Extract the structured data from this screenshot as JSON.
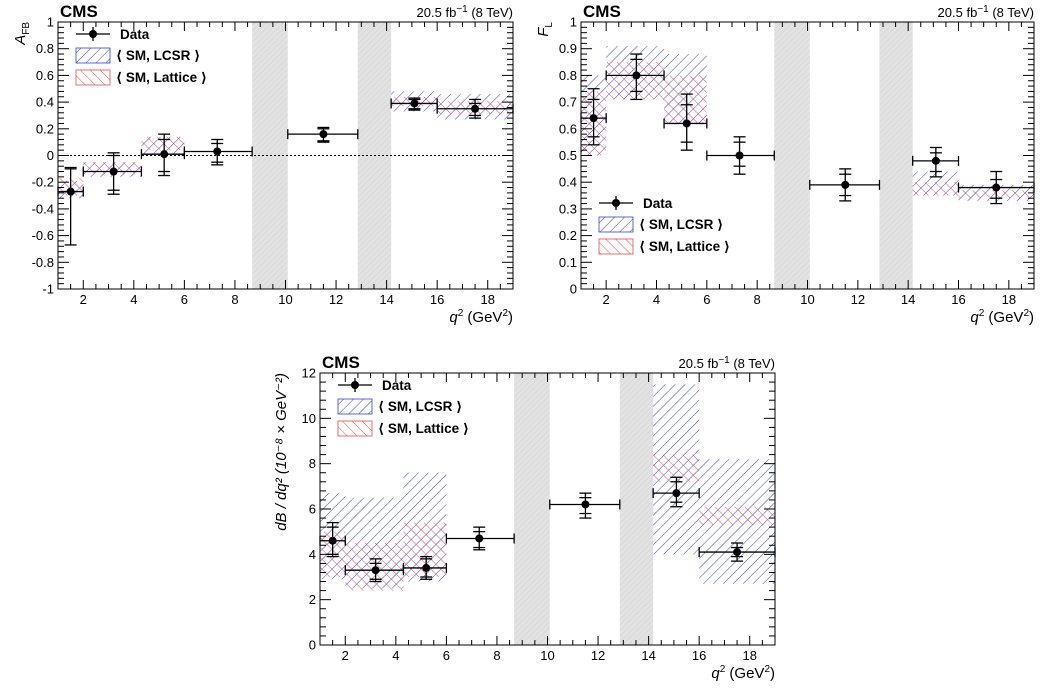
{
  "colors": {
    "lcsr": "#3b3fd0",
    "lattice": "#e0504a",
    "vetoed": "#c8c8c8",
    "data": "#000000"
  },
  "chart_data": [
    {
      "type": "scatter",
      "experiment": "CMS",
      "lumi_label": "20.5 fb",
      "lumi_unit_exp": "−1",
      "energy_label": "(8 TeV)",
      "xlabel": {
        "sym": "q",
        "sup": "2",
        "unit": " (GeV",
        "unit_sup": "2",
        "close": ")"
      },
      "ylabel": {
        "sym": "A",
        "sub": "FB"
      },
      "xlim": [
        1,
        19
      ],
      "ylim": [
        -1,
        1
      ],
      "x_ticks": [
        2,
        4,
        6,
        8,
        10,
        12,
        14,
        16,
        18
      ],
      "y_ticks": [
        -1,
        -0.8,
        -0.6,
        -0.4,
        -0.2,
        0,
        0.2,
        0.4,
        0.6,
        0.8,
        1
      ],
      "y_tick_labels": [
        "-1",
        "-0.8",
        "-0.6",
        "-0.4",
        "-0.2",
        "0",
        "0.2",
        "0.4",
        "0.6",
        "0.8",
        "1"
      ],
      "zero_line": true,
      "excluded_regions": [
        [
          8.68,
          10.09
        ],
        [
          12.86,
          14.18
        ]
      ],
      "legend": [
        "Data",
        "⟨ SM, LCSR ⟩",
        "⟨ SM, Lattice ⟩"
      ],
      "legend_position": "top-left",
      "data_points": [
        {
          "x": 1.5,
          "x_bin": [
            1,
            2
          ],
          "y": -0.27,
          "stat": [
            -0.27,
            -0.1
          ],
          "tot": [
            -0.67,
            -0.09
          ]
        },
        {
          "x": 3.2,
          "x_bin": [
            2,
            4.3
          ],
          "y": -0.12,
          "stat": [
            -0.26,
            0.0
          ],
          "tot": [
            -0.29,
            0.02
          ]
        },
        {
          "x": 5.2,
          "x_bin": [
            4.3,
            6
          ],
          "y": 0.01,
          "stat": [
            -0.12,
            0.12
          ],
          "tot": [
            -0.15,
            0.16
          ]
        },
        {
          "x": 7.3,
          "x_bin": [
            6,
            8.68
          ],
          "y": 0.03,
          "stat": [
            -0.05,
            0.09
          ],
          "tot": [
            -0.07,
            0.12
          ]
        },
        {
          "x": 11.5,
          "x_bin": [
            10.09,
            12.86
          ],
          "y": 0.16,
          "stat": [
            0.11,
            0.2
          ],
          "tot": [
            0.1,
            0.21
          ]
        },
        {
          "x": 15.1,
          "x_bin": [
            14.18,
            16
          ],
          "y": 0.39,
          "stat": [
            0.35,
            0.42
          ],
          "tot": [
            0.34,
            0.43
          ]
        },
        {
          "x": 17.5,
          "x_bin": [
            16,
            19
          ],
          "y": 0.35,
          "stat": [
            0.3,
            0.39
          ],
          "tot": [
            0.28,
            0.42
          ]
        }
      ],
      "sm_lcsr": [
        {
          "x": [
            1,
            2
          ],
          "y": [
            -0.19,
            -0.32
          ]
        },
        {
          "x": [
            2,
            4.3
          ],
          "y": [
            -0.05,
            -0.16
          ]
        },
        {
          "x": [
            4.3,
            6
          ],
          "y": [
            0.14,
            0.0
          ]
        },
        {
          "x": [
            14.18,
            16
          ],
          "y": [
            0.48,
            0.33
          ]
        },
        {
          "x": [
            16,
            19
          ],
          "y": [
            0.46,
            0.27
          ]
        }
      ],
      "sm_lattice": [
        {
          "x": [
            1,
            2
          ],
          "y": [
            -0.17,
            -0.3
          ]
        },
        {
          "x": [
            2,
            4.3
          ],
          "y": [
            -0.05,
            -0.14
          ]
        },
        {
          "x": [
            4.3,
            6
          ],
          "y": [
            0.14,
            0.04
          ]
        },
        {
          "x": [
            14.18,
            16
          ],
          "y": [
            0.44,
            0.37
          ]
        },
        {
          "x": [
            16,
            19
          ],
          "y": [
            0.41,
            0.31
          ]
        }
      ]
    },
    {
      "type": "scatter",
      "experiment": "CMS",
      "lumi_label": "20.5 fb",
      "lumi_unit_exp": "−1",
      "energy_label": "(8 TeV)",
      "xlabel": {
        "sym": "q",
        "sup": "2",
        "unit": " (GeV",
        "unit_sup": "2",
        "close": ")"
      },
      "ylabel": {
        "sym": "F",
        "sub": "L"
      },
      "xlim": [
        1,
        19
      ],
      "ylim": [
        0,
        1
      ],
      "x_ticks": [
        2,
        4,
        6,
        8,
        10,
        12,
        14,
        16,
        18
      ],
      "y_ticks": [
        0,
        0.1,
        0.2,
        0.3,
        0.4,
        0.5,
        0.6,
        0.7,
        0.8,
        0.9,
        1
      ],
      "y_tick_labels": [
        "0",
        "0.1",
        "0.2",
        "0.3",
        "0.4",
        "0.5",
        "0.6",
        "0.7",
        "0.8",
        "0.9",
        "1"
      ],
      "zero_line": false,
      "excluded_regions": [
        [
          8.68,
          10.09
        ],
        [
          12.86,
          14.18
        ]
      ],
      "legend": [
        "Data",
        "⟨ SM, LCSR ⟩",
        "⟨ SM, Lattice ⟩"
      ],
      "legend_position": "bottom-left",
      "data_points": [
        {
          "x": 1.5,
          "x_bin": [
            1,
            2
          ],
          "y": 0.64,
          "stat": [
            0.57,
            0.71
          ],
          "tot": [
            0.54,
            0.75
          ]
        },
        {
          "x": 3.2,
          "x_bin": [
            2,
            4.3
          ],
          "y": 0.8,
          "stat": [
            0.74,
            0.86
          ],
          "tot": [
            0.71,
            0.88
          ]
        },
        {
          "x": 5.2,
          "x_bin": [
            4.3,
            6
          ],
          "y": 0.62,
          "stat": [
            0.55,
            0.69
          ],
          "tot": [
            0.52,
            0.73
          ]
        },
        {
          "x": 7.3,
          "x_bin": [
            6,
            8.68
          ],
          "y": 0.5,
          "stat": [
            0.46,
            0.55
          ],
          "tot": [
            0.43,
            0.57
          ]
        },
        {
          "x": 11.5,
          "x_bin": [
            10.09,
            12.86
          ],
          "y": 0.39,
          "stat": [
            0.35,
            0.43
          ],
          "tot": [
            0.33,
            0.45
          ]
        },
        {
          "x": 15.1,
          "x_bin": [
            14.18,
            16
          ],
          "y": 0.48,
          "stat": [
            0.44,
            0.51
          ],
          "tot": [
            0.42,
            0.53
          ]
        },
        {
          "x": 17.5,
          "x_bin": [
            16,
            19
          ],
          "y": 0.38,
          "stat": [
            0.34,
            0.41
          ],
          "tot": [
            0.32,
            0.44
          ]
        }
      ],
      "sm_lcsr": [
        {
          "x": [
            1,
            2
          ],
          "y": [
            0.8,
            0.5
          ]
        },
        {
          "x": [
            2,
            4.3
          ],
          "y": [
            0.91,
            0.71
          ]
        },
        {
          "x": [
            4.3,
            6
          ],
          "y": [
            0.88,
            0.62
          ]
        },
        {
          "x": [
            14.18,
            16
          ],
          "y": [
            0.44,
            0.35
          ]
        },
        {
          "x": [
            16,
            19
          ],
          "y": [
            0.39,
            0.33
          ]
        }
      ],
      "sm_lattice": [
        {
          "x": [
            1,
            2
          ],
          "y": [
            0.74,
            0.5
          ]
        },
        {
          "x": [
            2,
            4.3
          ],
          "y": [
            0.85,
            0.71
          ]
        },
        {
          "x": [
            4.3,
            6
          ],
          "y": [
            0.8,
            0.62
          ]
        },
        {
          "x": [
            14.18,
            16
          ],
          "y": [
            0.4,
            0.35
          ]
        },
        {
          "x": [
            16,
            19
          ],
          "y": [
            0.37,
            0.34
          ]
        }
      ]
    },
    {
      "type": "scatter",
      "experiment": "CMS",
      "lumi_label": "20.5 fb",
      "lumi_unit_exp": "−1",
      "energy_label": "(8 TeV)",
      "xlabel": {
        "sym": "q",
        "sup": "2",
        "unit": " (GeV",
        "unit_sup": "2",
        "close": ")"
      },
      "ylabel": {
        "full": "dB / dq² (10⁻⁸ × GeV⁻²)"
      },
      "xlim": [
        1,
        19
      ],
      "ylim": [
        0,
        12
      ],
      "x_ticks": [
        2,
        4,
        6,
        8,
        10,
        12,
        14,
        16,
        18
      ],
      "y_ticks": [
        0,
        2,
        4,
        6,
        8,
        10,
        12
      ],
      "y_tick_labels": [
        "0",
        "2",
        "4",
        "6",
        "8",
        "10",
        "12"
      ],
      "zero_line": false,
      "excluded_regions": [
        [
          8.68,
          10.09
        ],
        [
          12.86,
          14.18
        ]
      ],
      "legend": [
        "Data",
        "⟨ SM, LCSR ⟩",
        "⟨ SM, Lattice ⟩"
      ],
      "legend_position": "top-left",
      "data_points": [
        {
          "x": 1.5,
          "x_bin": [
            1,
            2
          ],
          "y": 4.6,
          "stat": [
            4.0,
            5.2
          ],
          "tot": [
            3.9,
            5.4
          ]
        },
        {
          "x": 3.2,
          "x_bin": [
            2,
            4.3
          ],
          "y": 3.3,
          "stat": [
            2.9,
            3.6
          ],
          "tot": [
            2.8,
            3.8
          ]
        },
        {
          "x": 5.2,
          "x_bin": [
            4.3,
            6
          ],
          "y": 3.4,
          "stat": [
            3.0,
            3.8
          ],
          "tot": [
            2.9,
            3.9
          ]
        },
        {
          "x": 7.3,
          "x_bin": [
            6,
            8.68
          ],
          "y": 4.7,
          "stat": [
            4.3,
            5.0
          ],
          "tot": [
            4.2,
            5.2
          ]
        },
        {
          "x": 11.5,
          "x_bin": [
            10.09,
            12.86
          ],
          "y": 6.2,
          "stat": [
            5.8,
            6.5
          ],
          "tot": [
            5.6,
            6.7
          ]
        },
        {
          "x": 15.1,
          "x_bin": [
            14.18,
            16
          ],
          "y": 6.7,
          "stat": [
            6.3,
            7.2
          ],
          "tot": [
            6.1,
            7.4
          ]
        },
        {
          "x": 17.5,
          "x_bin": [
            16,
            19
          ],
          "y": 4.1,
          "stat": [
            3.9,
            4.3
          ],
          "tot": [
            3.7,
            4.5
          ]
        }
      ],
      "sm_lcsr": [
        {
          "x": [
            1,
            2
          ],
          "y": [
            6.7,
            2.9
          ]
        },
        {
          "x": [
            2,
            4.3
          ],
          "y": [
            6.5,
            2.5
          ]
        },
        {
          "x": [
            4.3,
            6
          ],
          "y": [
            7.6,
            2.8
          ]
        },
        {
          "x": [
            14.18,
            16
          ],
          "y": [
            11.5,
            4.0
          ]
        },
        {
          "x": [
            16,
            19
          ],
          "y": [
            8.2,
            2.7
          ]
        }
      ],
      "sm_lattice": [
        {
          "x": [
            1,
            2
          ],
          "y": [
            5.0,
            3.0
          ]
        },
        {
          "x": [
            2,
            4.3
          ],
          "y": [
            4.5,
            2.4
          ]
        },
        {
          "x": [
            4.3,
            6
          ],
          "y": [
            5.4,
            3.0
          ]
        },
        {
          "x": [
            14.18,
            16
          ],
          "y": [
            8.4,
            7.2
          ]
        },
        {
          "x": [
            16,
            19
          ],
          "y": [
            6.1,
            5.3
          ]
        }
      ]
    }
  ]
}
